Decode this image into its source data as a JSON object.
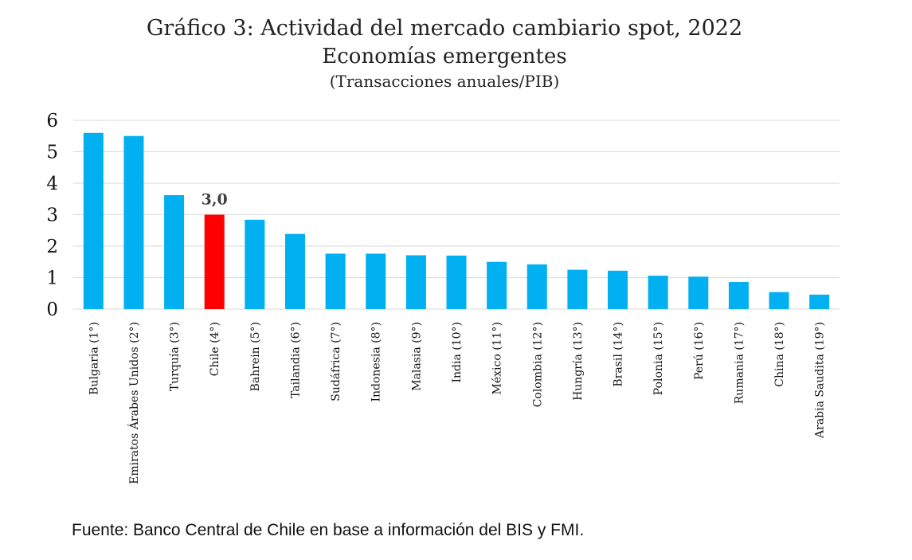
{
  "chart_data": {
    "type": "bar",
    "title": "Gráfico 3: Actividad del mercado cambiario spot, 2022",
    "subtitle": "Economías emergentes",
    "unit_label": "(Transacciones anuales/PIB)",
    "categories": [
      "Bulgaria (1°)",
      "Emiratos Árabes Unidos (2°)",
      "Turquía (3°)",
      "Chile (4°)",
      "Bahrein (5°)",
      "Tailandia (6°)",
      "Sudáfrica (7°)",
      "Indonesia (8°)",
      "Malasia (9°)",
      "India (10°)",
      "México (11°)",
      "Colombia (12°)",
      "Hungría (13°)",
      "Brasil (14°)",
      "Polonia (15°)",
      "Perú (16°)",
      "Rumania (17°)",
      "China (18°)",
      "Arabia Saudita (19°)"
    ],
    "values": [
      5.6,
      5.5,
      3.62,
      3.0,
      2.84,
      2.39,
      1.76,
      1.76,
      1.71,
      1.7,
      1.5,
      1.42,
      1.25,
      1.22,
      1.06,
      1.03,
      0.86,
      0.54,
      0.46
    ],
    "highlight_index": 3,
    "annotation": "3,0",
    "ylim": [
      0,
      6
    ],
    "yticks": [
      "0",
      "1",
      "2",
      "3",
      "4",
      "5",
      "6"
    ],
    "grid": true,
    "legend": "none",
    "colors": {
      "bar": "#00B0F0",
      "highlight": "#FF0000",
      "grid": "#D9D9D9"
    }
  },
  "source": "Fuente: Banco Central de Chile en base a información del BIS y FMI."
}
